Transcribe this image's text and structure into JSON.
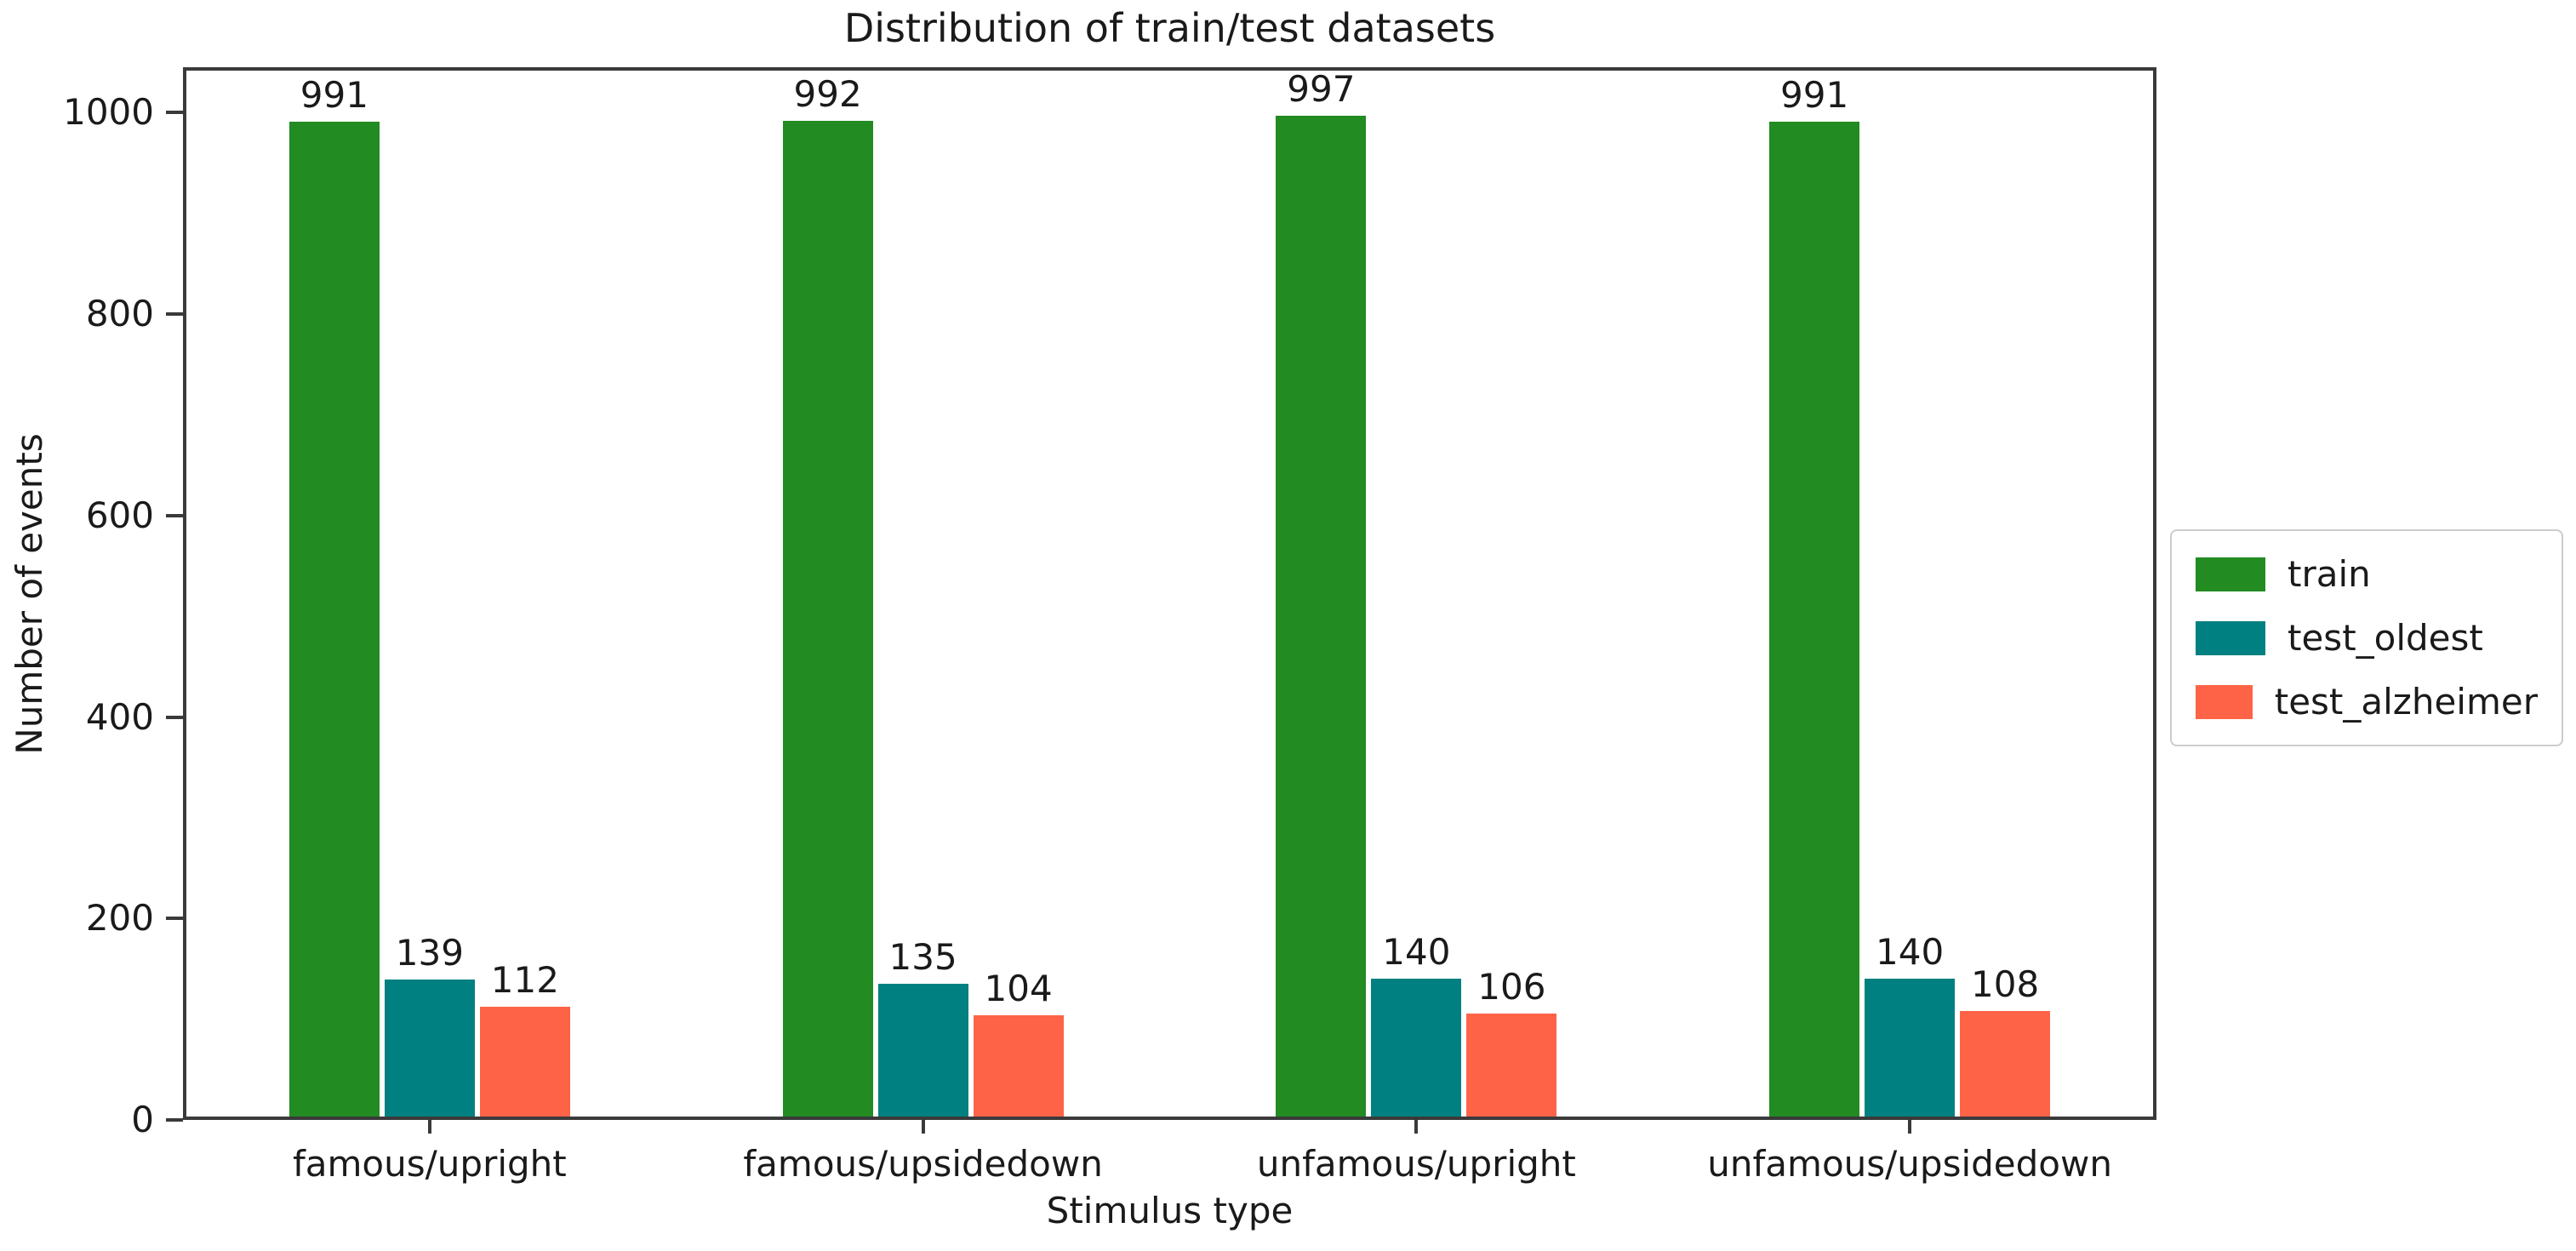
{
  "chart_data": {
    "type": "bar",
    "title": "Distribution of train/test datasets",
    "xlabel": "Stimulus type",
    "ylabel": "Number of events",
    "categories": [
      "famous/upright",
      "famous/upsidedown",
      "unfamous/upright",
      "unfamous/upsidedown"
    ],
    "series": [
      {
        "name": "train",
        "color": "#228B22",
        "values": [
          991,
          992,
          997,
          991
        ]
      },
      {
        "name": "test_oldest",
        "color": "#008080",
        "values": [
          139,
          135,
          140,
          140
        ]
      },
      {
        "name": "test_alzheimer",
        "color": "#FF6347",
        "values": [
          112,
          104,
          106,
          108
        ]
      }
    ],
    "yticks": [
      0,
      200,
      400,
      600,
      800,
      1000
    ],
    "ylim": [
      0,
      1045
    ],
    "grid": false,
    "bar_value_labels": true,
    "legend_position": "right-outside"
  }
}
